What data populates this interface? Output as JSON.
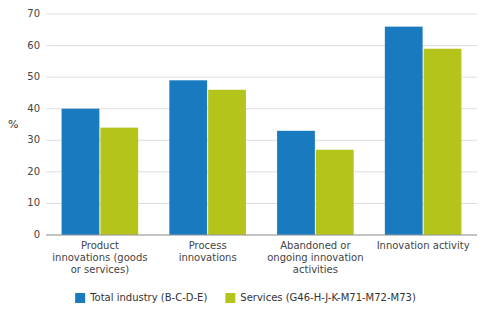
{
  "chart_data": {
    "type": "bar",
    "categories": [
      "Product\ninnovations (goods\nor services)",
      "Process\ninnovations",
      "Abandoned or\nongoing innovation\nactivities",
      "Innovation activity"
    ],
    "series": [
      {
        "name": "Total industry (B-C-D-E)",
        "values": [
          40,
          49,
          33,
          66
        ],
        "color": "#1a7abf"
      },
      {
        "name": "Services (G46-H-J-K-M71-M72-M73)",
        "values": [
          34,
          46,
          27,
          59
        ],
        "color": "#b5c41a"
      }
    ],
    "ylabel": "%",
    "ylim": [
      0,
      70
    ],
    "yticks": [
      0,
      10,
      20,
      30,
      40,
      50,
      60,
      70
    ],
    "grid": true,
    "legend": "bottom"
  }
}
